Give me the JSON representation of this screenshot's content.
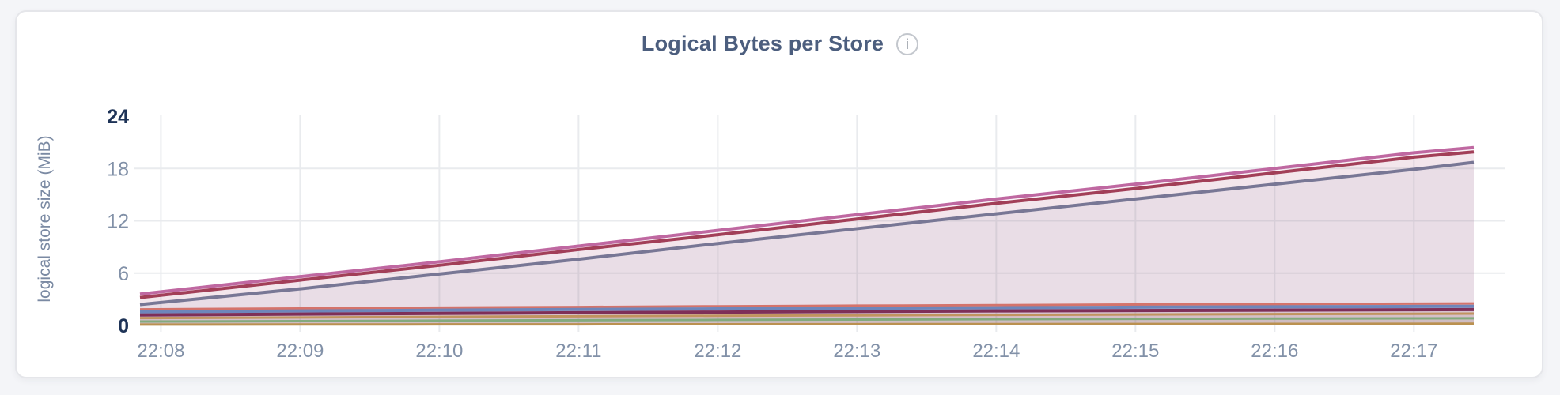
{
  "header": {
    "info_icon_glyph": "i"
  },
  "chart_data": {
    "type": "area",
    "title": "Logical Bytes per Store",
    "xlabel": "",
    "ylabel": "logical store size (MiB)",
    "unit": "MiB",
    "legend": "none",
    "grid": true,
    "ylim": [
      0,
      24
    ],
    "y_ticks": [
      {
        "value": 24,
        "label": "24",
        "emphasized": true
      },
      {
        "value": 18,
        "label": "18",
        "emphasized": false
      },
      {
        "value": 12,
        "label": "12",
        "emphasized": false
      },
      {
        "value": 6,
        "label": "6",
        "emphasized": false
      },
      {
        "value": 0,
        "label": "0",
        "emphasized": true
      }
    ],
    "y_gridlines": [
      6,
      12,
      18
    ],
    "x_ticks": [
      {
        "label": "22:08",
        "minute": 8
      },
      {
        "label": "22:09",
        "minute": 9
      },
      {
        "label": "22:10",
        "minute": 10
      },
      {
        "label": "22:11",
        "minute": 11
      },
      {
        "label": "22:12",
        "minute": 12
      },
      {
        "label": "22:13",
        "minute": 13
      },
      {
        "label": "22:14",
        "minute": 14
      },
      {
        "label": "22:15",
        "minute": 15
      },
      {
        "label": "22:16",
        "minute": 16
      },
      {
        "label": "22:17",
        "minute": 17
      }
    ],
    "xlim_minutes": [
      7.85,
      17.43
    ],
    "x_minutes": [
      7.85,
      9,
      10,
      11,
      12,
      13,
      14,
      15,
      16,
      17,
      17.43
    ],
    "series": [
      {
        "id": "store-1",
        "color": "#bf68a1",
        "stroke_width": 4,
        "fill_opacity": 0.07,
        "values": [
          3.6,
          5.6,
          7.3,
          9.1,
          10.9,
          12.7,
          14.5,
          16.2,
          18.0,
          19.8,
          20.4
        ]
      },
      {
        "id": "store-2",
        "color": "#a23f58",
        "stroke_width": 4,
        "fill_opacity": 0.07,
        "values": [
          3.2,
          5.2,
          6.9,
          8.7,
          10.4,
          12.2,
          14.0,
          15.7,
          17.5,
          19.3,
          19.9
        ]
      },
      {
        "id": "store-3",
        "color": "#787795",
        "stroke_width": 4,
        "fill_opacity": 0.07,
        "values": [
          2.4,
          4.2,
          5.9,
          7.6,
          9.4,
          11.1,
          12.8,
          14.5,
          16.2,
          17.9,
          18.7
        ]
      },
      {
        "id": "store-4",
        "color": "#d4736b",
        "stroke_width": 3,
        "fill_opacity": 0.07,
        "values": [
          1.85,
          1.95,
          2.05,
          2.12,
          2.2,
          2.27,
          2.33,
          2.4,
          2.45,
          2.5,
          2.52
        ]
      },
      {
        "id": "store-5",
        "color": "#6e86bb",
        "stroke_width": 4,
        "fill_opacity": 0.07,
        "values": [
          1.55,
          1.66,
          1.75,
          1.83,
          1.9,
          1.97,
          2.03,
          2.09,
          2.14,
          2.18,
          2.2
        ]
      },
      {
        "id": "store-6",
        "color": "#7e2f58",
        "stroke_width": 4,
        "fill_opacity": 0.07,
        "values": [
          1.2,
          1.3,
          1.38,
          1.46,
          1.53,
          1.6,
          1.66,
          1.71,
          1.76,
          1.8,
          1.82
        ]
      },
      {
        "id": "store-7",
        "color": "#c1945f",
        "stroke_width": 3,
        "fill_opacity": 0.07,
        "values": [
          0.85,
          0.92,
          0.99,
          1.05,
          1.11,
          1.16,
          1.21,
          1.26,
          1.3,
          1.34,
          1.36
        ]
      },
      {
        "id": "store-8",
        "color": "#83aa7d",
        "stroke_width": 3,
        "fill_opacity": 0.07,
        "values": [
          0.45,
          0.5,
          0.55,
          0.6,
          0.64,
          0.68,
          0.72,
          0.76,
          0.79,
          0.82,
          0.83
        ]
      },
      {
        "id": "store-9",
        "color": "#ba9150",
        "stroke_width": 3,
        "fill_opacity": 0.07,
        "values": [
          0.1,
          0.11,
          0.12,
          0.13,
          0.14,
          0.15,
          0.16,
          0.17,
          0.18,
          0.19,
          0.2
        ]
      }
    ],
    "axis_colors": {
      "tick_label": "#8291a8",
      "tick_label_emphasized": "#1e3357",
      "gridline": "#e9ebee",
      "axis_title": "#7b8aa3"
    },
    "title_color": "#4c5e7e"
  }
}
